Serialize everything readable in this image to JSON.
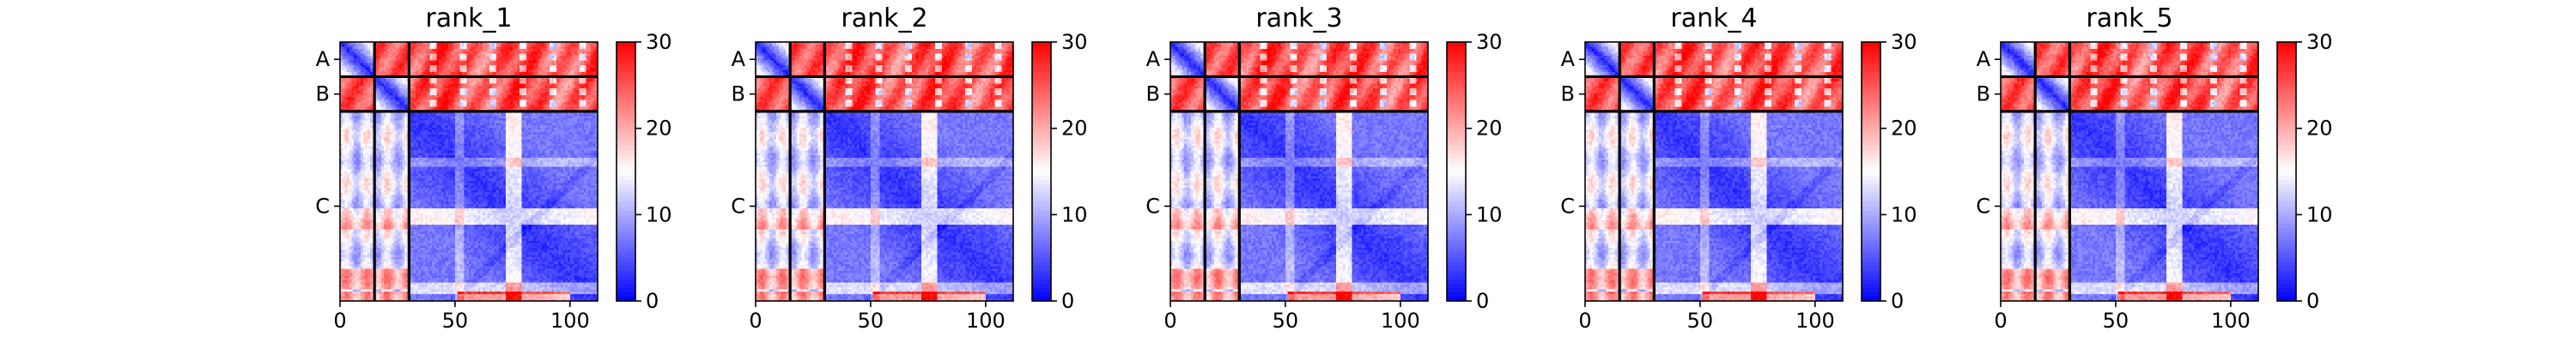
{
  "chart_data": {
    "type": "heatmap",
    "description_kind": "predicted aligned error matrices",
    "residues_total": 112,
    "chain_boundaries": [
      15,
      30
    ],
    "chains": [
      {
        "label": "A",
        "start": 0,
        "end": 15
      },
      {
        "label": "B",
        "start": 15,
        "end": 30
      },
      {
        "label": "C",
        "start": 30,
        "end": 112
      }
    ],
    "x_ticks": [
      0,
      50,
      100
    ],
    "x_tick_labels": [
      "0",
      "50",
      "100"
    ],
    "colorbar": {
      "min": 0,
      "max": 30,
      "ticks": [
        0,
        10,
        20,
        30
      ],
      "tick_labels": [
        "0",
        "10",
        "20",
        "30"
      ],
      "colormap": "bwr",
      "colors": [
        "#0000ff",
        "#ffffff",
        "#ff0000"
      ]
    },
    "panels": [
      {
        "title": "rank_1",
        "noise_seed": 11
      },
      {
        "title": "rank_2",
        "noise_seed": 23
      },
      {
        "title": "rank_3",
        "noise_seed": 37
      },
      {
        "title": "rank_4",
        "noise_seed": 51
      },
      {
        "title": "rank_5",
        "noise_seed": 67
      }
    ]
  }
}
